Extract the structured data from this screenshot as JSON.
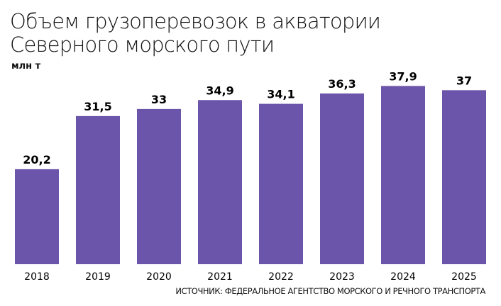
{
  "chart_data": {
    "type": "bar",
    "title": "Объем грузоперевозок в акватории Северного морского пути",
    "title_lines": [
      "Объем грузоперевозок в акватории",
      "Северного морского пути"
    ],
    "ylabel": "млн т",
    "categories": [
      "2018",
      "2019",
      "2020",
      "2021",
      "2022",
      "2023",
      "2024",
      "2025"
    ],
    "values": [
      20.2,
      31.5,
      33,
      34.9,
      34.1,
      36.3,
      37.9,
      37
    ],
    "data_labels": [
      "20,2",
      "31,5",
      "33",
      "34,9",
      "34,1",
      "36,3",
      "37,9",
      "37"
    ],
    "ylim": [
      0,
      40
    ],
    "grid": false,
    "bar_color": "#6b55ab",
    "source": "ИСТОЧНИК: ФЕДЕРАЛЬНОЕ АГЕНТСТВО МОРСКОГО И РЕЧНОГО ТРАНСПОРТА"
  }
}
